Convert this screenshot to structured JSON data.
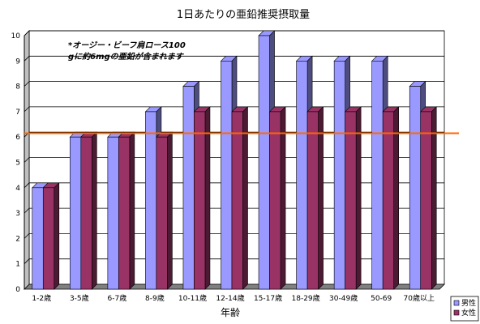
{
  "chart_data": {
    "type": "bar",
    "title": "1日あたりの亜鉛推奨摂取量",
    "xlabel": "年齢",
    "ylabel": "",
    "ylim": [
      0,
      10
    ],
    "yticks": [
      0,
      1,
      2,
      3,
      4,
      5,
      6,
      7,
      8,
      9,
      10
    ],
    "grid": true,
    "legend_position": "bottom-right",
    "categories": [
      "1-2歳",
      "3-5歳",
      "6-7歳",
      "8-9歳",
      "10-11歳",
      "12-14歳",
      "15-17歳",
      "18-29歳",
      "30-49歳",
      "50-69",
      "70歳以上"
    ],
    "series": [
      {
        "name": "男性",
        "values": [
          4,
          6,
          6,
          7,
          8,
          9,
          10,
          9,
          9,
          9,
          8
        ],
        "color": "#9999ff"
      },
      {
        "name": "女性",
        "values": [
          4,
          6,
          6,
          6,
          7,
          7,
          7,
          7,
          7,
          7,
          7
        ],
        "color": "#993366"
      }
    ],
    "reference_line": {
      "value": 6.15,
      "color": "#ff6600"
    },
    "annotation": {
      "line1": "*オージー・ビーフ肩ロース100",
      "line2": "gに約6mgの亜鉛が含まれます"
    }
  }
}
